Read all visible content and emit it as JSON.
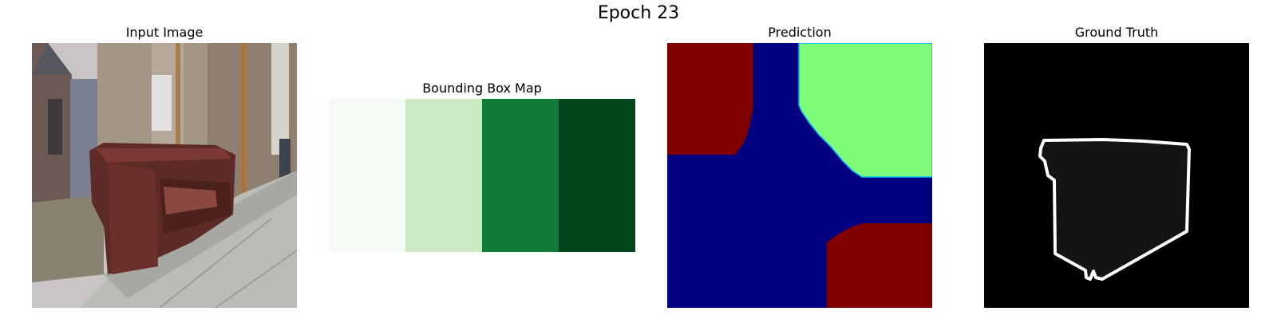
{
  "figure": {
    "title": "Epoch 23"
  },
  "panels": {
    "input": {
      "title": "Input Image"
    },
    "bbox": {
      "title": "Bounding Box Map",
      "colors": [
        "#f4fbf2",
        "#cbeac4",
        "#117b39",
        "#00461c"
      ]
    },
    "prediction": {
      "title": "Prediction",
      "colors": {
        "background": "#000080",
        "class_a": "#800000",
        "class_b": "#7ffd7a",
        "edge": "#00b4ff"
      }
    },
    "ground_truth": {
      "title": "Ground Truth",
      "colors": {
        "background": "#000000",
        "fill": "#141414",
        "outline": "#ffffff"
      }
    }
  }
}
